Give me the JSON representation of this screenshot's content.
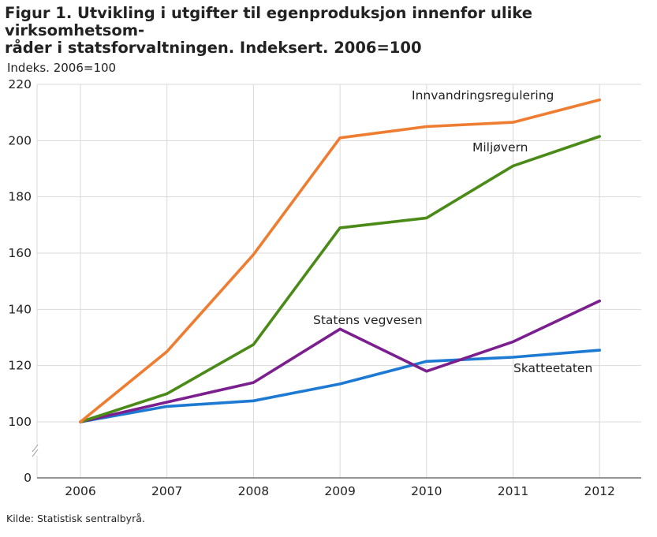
{
  "figure": {
    "title": "Figur 1. Utvikling i utgifter til egenproduksjon innenfor ulike virksomhetsom-\nråder i statsforvaltningen. Indeksert. 2006=100",
    "source": "Kilde: Statistisk sentralbyrå."
  },
  "chart_data": {
    "type": "line",
    "title": "Figur 1. Utvikling i utgifter til egenproduksjon innenfor ulike virksomhetsområder i statsforvaltningen. Indeksert. 2006=100",
    "ylabel": "Indeks. 2006=100",
    "xlabel": "",
    "categories": [
      "2006",
      "2007",
      "2008",
      "2009",
      "2010",
      "2011",
      "2012"
    ],
    "y_ticks": [
      "0",
      "100",
      "120",
      "140",
      "160",
      "180",
      "200",
      "220"
    ],
    "ylim": [
      100,
      220
    ],
    "y_axis_break": true,
    "grid": true,
    "legend": "inline labels",
    "series": [
      {
        "name": "Innvandringsregulering",
        "color": "#ef7d31",
        "values": [
          100,
          125,
          159.5,
          201,
          205,
          206.5,
          214.5
        ]
      },
      {
        "name": "Miljøvern",
        "color": "#4a8a17",
        "values": [
          100,
          110,
          127.5,
          169,
          172.5,
          191,
          201.5
        ]
      },
      {
        "name": "Statens vegvesen",
        "color": "#7b1f8f",
        "values": [
          100,
          107,
          114,
          133,
          118,
          128.5,
          143
        ]
      },
      {
        "name": "Skatteetaten",
        "color": "#1c7ad3",
        "values": [
          100,
          105.5,
          107.5,
          113.5,
          121.5,
          123,
          125.5
        ]
      }
    ]
  }
}
